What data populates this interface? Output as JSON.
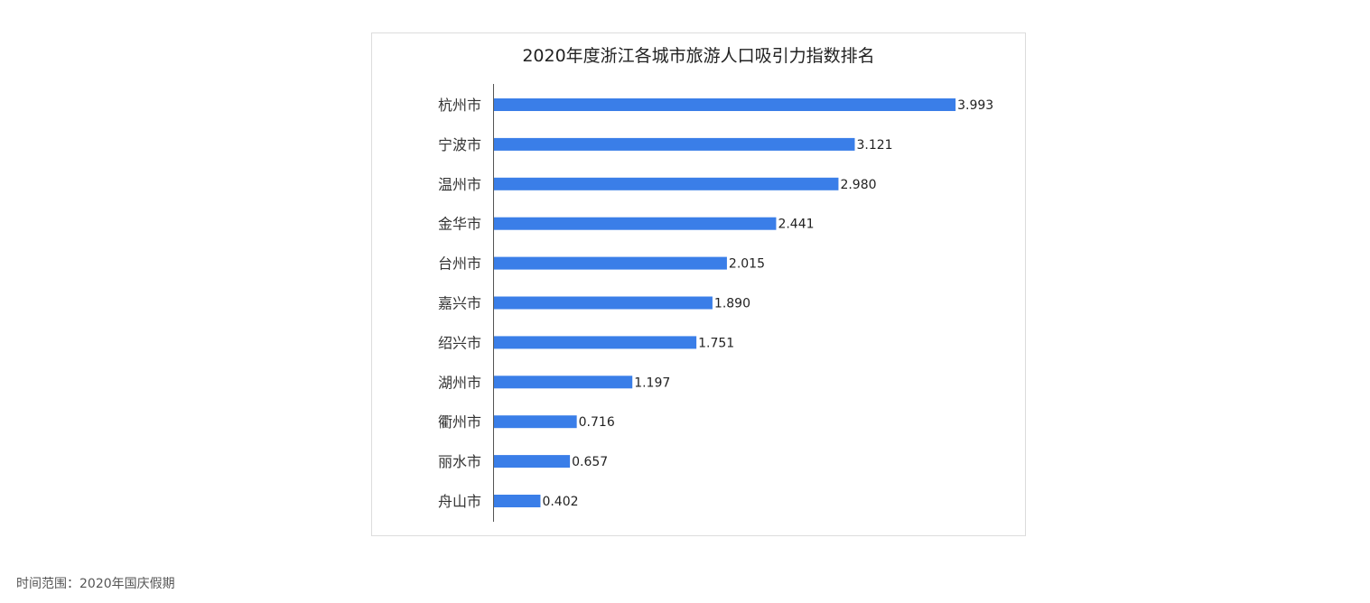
{
  "chart_data": {
    "type": "bar",
    "orientation": "horizontal",
    "title": "2020年度浙江各城市旅游人口吸引力指数排名",
    "categories": [
      "杭州市",
      "宁波市",
      "温州市",
      "金华市",
      "台州市",
      "嘉兴市",
      "绍兴市",
      "湖州市",
      "衢州市",
      "丽水市",
      "舟山市"
    ],
    "values": [
      3.993,
      3.121,
      2.98,
      2.441,
      2.015,
      1.89,
      1.751,
      1.197,
      0.716,
      0.657,
      0.402
    ],
    "value_labels": [
      "3.993",
      "3.121",
      "2.980",
      "2.441",
      "2.015",
      "1.890",
      "1.751",
      "1.197",
      "0.716",
      "0.657",
      "0.402"
    ],
    "xlabel": "",
    "ylabel": "",
    "xlim": [
      0,
      4.0
    ],
    "grid": false,
    "legend": "none",
    "bar_color": "#3a7ee8"
  },
  "footnote": "时间范围：2020年国庆假期"
}
